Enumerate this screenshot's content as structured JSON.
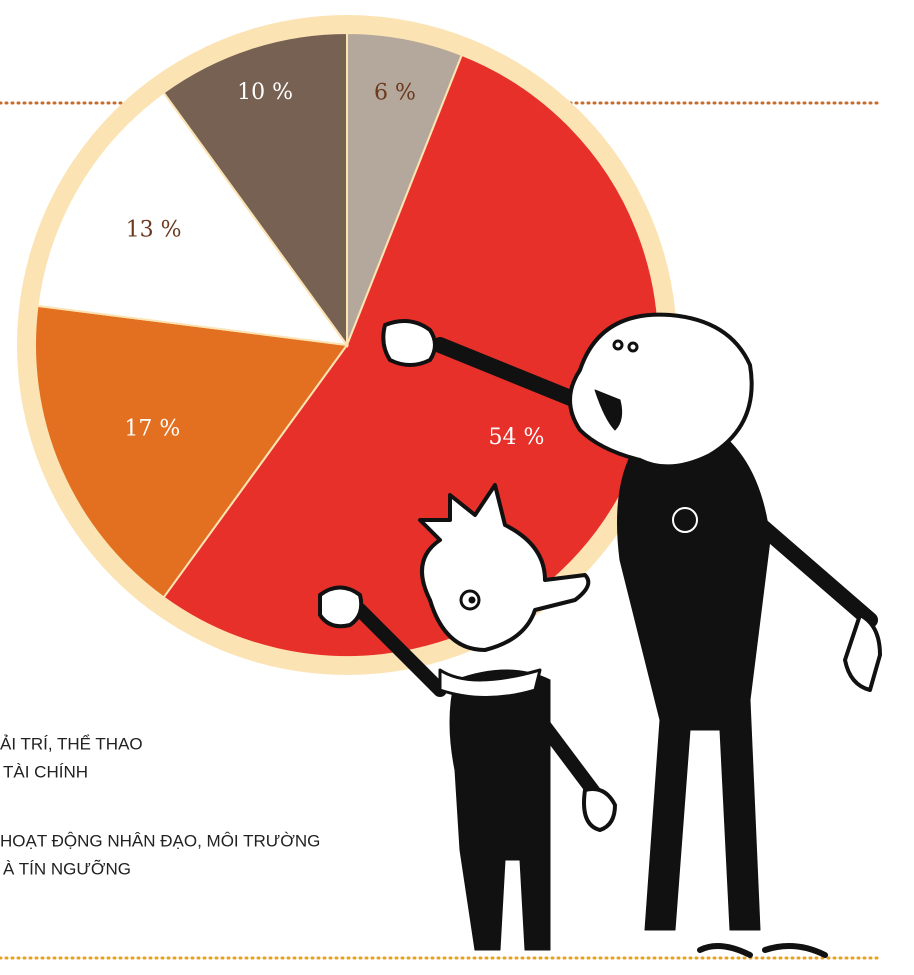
{
  "chart_data": {
    "type": "pie",
    "values": [
      6,
      54,
      17,
      13,
      10
    ],
    "value_labels": [
      "6 %",
      "54 %",
      "17 %",
      "13 %",
      "10 %"
    ],
    "colors": [
      "#b4a79b",
      "#e8302a",
      "#e27020",
      "#ffffff",
      "#766152"
    ],
    "legend_lines": [
      "ẢI TRÍ, THỂ THAO",
      "TÀI CHÍNH",
      "HOẠT ĐỘNG NHÂN ĐẠO, MÔI TRƯỜNG",
      "À TÍN NGƯỠNG"
    ]
  }
}
